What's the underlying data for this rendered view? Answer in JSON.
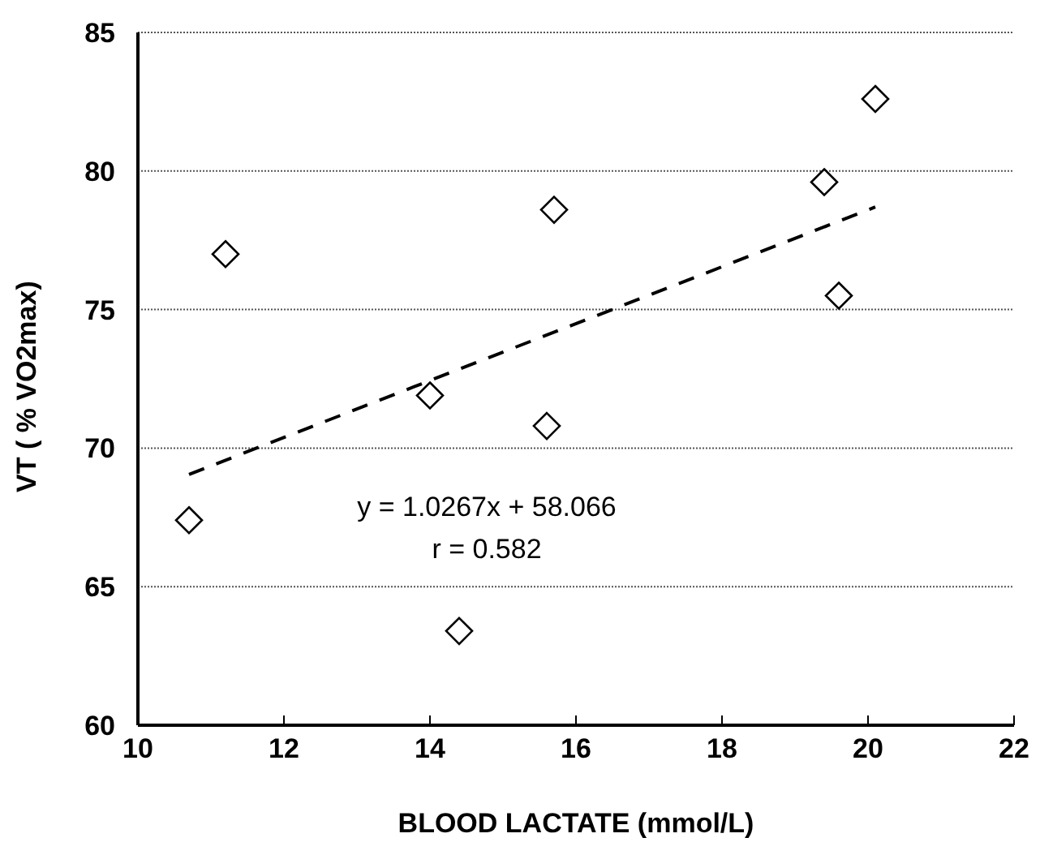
{
  "chart_data": {
    "type": "scatter",
    "xlabel": "BLOOD LACTATE (mmol/L)",
    "ylabel": "VT ( % VO2max)",
    "xlim": [
      10,
      22
    ],
    "xticks": [
      10,
      12,
      14,
      16,
      18,
      20,
      22
    ],
    "ylim": [
      60,
      85
    ],
    "yticks": [
      60,
      65,
      70,
      75,
      80,
      85
    ],
    "grid": "y",
    "legend": false,
    "annotations": [
      "y = 1.0267x + 58.066",
      "r = 0.582"
    ],
    "series": [
      {
        "color": "#000000",
        "marker": "diamond",
        "x": [
          10.7,
          11.2,
          14.0,
          14.4,
          15.6,
          15.7,
          19.4,
          19.6,
          20.1
        ],
        "values": [
          67.4,
          77.0,
          71.9,
          63.4,
          70.8,
          78.6,
          79.6,
          75.5,
          82.6
        ]
      },
      {
        "type": "line",
        "line_style": "dashed",
        "color": "#000000",
        "x": [
          10.7,
          20.1
        ],
        "values": [
          69.05,
          78.7
        ]
      }
    ]
  }
}
